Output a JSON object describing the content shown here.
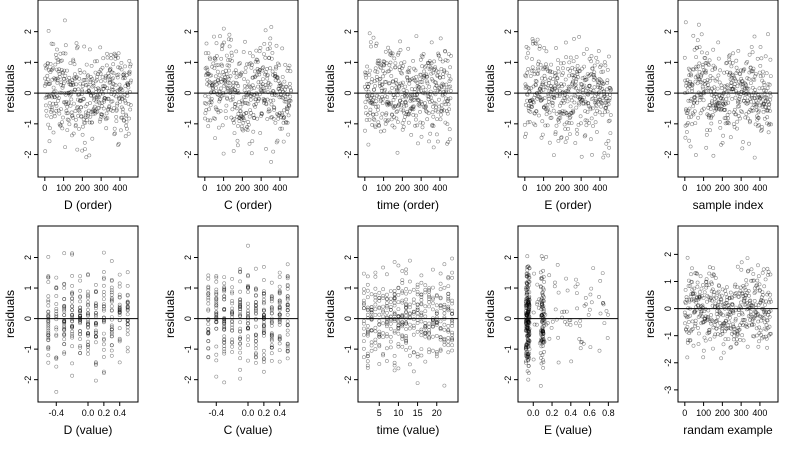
{
  "figure": {
    "layout": "2x5 grid of residual scatter plots",
    "point_style": "open circles, semi-transparent black",
    "reference_line": 0
  },
  "chart_data": [
    {
      "type": "scatter",
      "xlabel": "D (order)",
      "ylabel": "residuals",
      "xlim": [
        -15,
        475
      ],
      "ylim": [
        -2.6,
        2.9
      ],
      "x_ticks": [
        0,
        100,
        200,
        300,
        400
      ],
      "x_tick_labels": [
        "0",
        "100",
        "200",
        "300",
        "400"
      ],
      "y_ticks": [
        -2,
        -1,
        0,
        1,
        2
      ],
      "y_tick_labels": [
        "-2",
        "-1",
        "0",
        "1",
        "2"
      ],
      "x_kind": "order",
      "n_points": 460
    },
    {
      "type": "scatter",
      "xlabel": "C (order)",
      "ylabel": "residuals",
      "xlim": [
        -15,
        475
      ],
      "ylim": [
        -2.6,
        2.9
      ],
      "x_ticks": [
        0,
        100,
        200,
        300,
        400
      ],
      "x_tick_labels": [
        "0",
        "100",
        "200",
        "300",
        "400"
      ],
      "y_ticks": [
        -2,
        -1,
        0,
        1,
        2
      ],
      "y_tick_labels": [
        "-2",
        "-1",
        "0",
        "1",
        "2"
      ],
      "x_kind": "order",
      "n_points": 460
    },
    {
      "type": "scatter",
      "xlabel": "time (order)",
      "ylabel": "residuals",
      "xlim": [
        -15,
        475
      ],
      "ylim": [
        -2.6,
        2.9
      ],
      "x_ticks": [
        0,
        100,
        200,
        300,
        400
      ],
      "x_tick_labels": [
        "0",
        "100",
        "200",
        "300",
        "400"
      ],
      "y_ticks": [
        -2,
        -1,
        0,
        1,
        2
      ],
      "y_tick_labels": [
        "-2",
        "-1",
        "0",
        "1",
        "2"
      ],
      "x_kind": "order",
      "n_points": 460
    },
    {
      "type": "scatter",
      "xlabel": "E (order)",
      "ylabel": "residuals",
      "xlim": [
        -15,
        475
      ],
      "ylim": [
        -2.6,
        2.9
      ],
      "x_ticks": [
        0,
        100,
        200,
        300,
        400
      ],
      "x_tick_labels": [
        "0",
        "100",
        "200",
        "300",
        "400"
      ],
      "y_ticks": [
        -2,
        -1,
        0,
        1,
        2
      ],
      "y_tick_labels": [
        "-2",
        "-1",
        "0",
        "1",
        "2"
      ],
      "x_kind": "order",
      "n_points": 460
    },
    {
      "type": "scatter",
      "xlabel": "sample index",
      "ylabel": "residuals",
      "xlim": [
        -15,
        475
      ],
      "ylim": [
        -2.6,
        2.9
      ],
      "x_ticks": [
        0,
        100,
        200,
        300,
        400
      ],
      "x_tick_labels": [
        "0",
        "100",
        "200",
        "300",
        "400"
      ],
      "y_ticks": [
        -2,
        -1,
        0,
        1,
        2
      ],
      "y_tick_labels": [
        "-2",
        "-1",
        "0",
        "1",
        "2"
      ],
      "x_kind": "order",
      "n_points": 460
    },
    {
      "type": "scatter",
      "xlabel": "D (value)",
      "ylabel": "residuals",
      "xlim": [
        -0.58,
        0.58
      ],
      "ylim": [
        -2.6,
        2.9
      ],
      "x_ticks": [
        -0.4,
        0.0,
        0.2,
        0.4
      ],
      "x_tick_labels": [
        "-0.4",
        "0.0",
        "0.2",
        "0.4"
      ],
      "y_ticks": [
        -2,
        -1,
        0,
        1,
        2
      ],
      "y_tick_labels": [
        "-2",
        "-1",
        "0",
        "1",
        "2"
      ],
      "x_kind": "discrete",
      "x_levels": [
        -0.5,
        -0.4,
        -0.3,
        -0.2,
        -0.1,
        0.0,
        0.1,
        0.2,
        0.3,
        0.4,
        0.5
      ],
      "n_points": 330
    },
    {
      "type": "scatter",
      "xlabel": "C (value)",
      "ylabel": "residuals",
      "xlim": [
        -0.58,
        0.58
      ],
      "ylim": [
        -2.6,
        2.9
      ],
      "x_ticks": [
        -0.4,
        0.0,
        0.2,
        0.4
      ],
      "x_tick_labels": [
        "-0.4",
        "0.0",
        "0.2",
        "0.4"
      ],
      "y_ticks": [
        -2,
        -1,
        0,
        1,
        2
      ],
      "y_tick_labels": [
        "-2",
        "-1",
        "0",
        "1",
        "2"
      ],
      "x_kind": "discrete",
      "x_levels": [
        -0.5,
        -0.4,
        -0.3,
        -0.2,
        -0.1,
        0.0,
        0.1,
        0.2,
        0.3,
        0.4,
        0.5
      ],
      "n_points": 360
    },
    {
      "type": "scatter",
      "xlabel": "time (value)",
      "ylabel": "residuals",
      "xlim": [
        0.5,
        24.5
      ],
      "ylim": [
        -2.6,
        2.9
      ],
      "x_ticks": [
        5,
        10,
        15,
        20
      ],
      "x_tick_labels": [
        "5",
        "10",
        "15",
        "20"
      ],
      "y_ticks": [
        -2,
        -1,
        0,
        1,
        2
      ],
      "y_tick_labels": [
        "-2",
        "-1",
        "0",
        "1",
        "2"
      ],
      "x_kind": "discrete",
      "x_levels": [
        1,
        2,
        3,
        4,
        5,
        6,
        7,
        8,
        9,
        10,
        11,
        12,
        13,
        14,
        15,
        16,
        17,
        18,
        19,
        20,
        21,
        22,
        23,
        24
      ],
      "n_points": 420
    },
    {
      "type": "scatter",
      "xlabel": "E (value)",
      "ylabel": "residuals",
      "xlim": [
        -0.12,
        0.86
      ],
      "ylim": [
        -2.6,
        2.9
      ],
      "x_ticks": [
        0.0,
        0.2,
        0.4,
        0.6,
        0.8
      ],
      "x_tick_labels": [
        "0.0",
        "0.2",
        "0.4",
        "0.6",
        "0.8"
      ],
      "y_ticks": [
        -2,
        -1,
        0,
        1,
        2
      ],
      "y_tick_labels": [
        "-2",
        "-1",
        "0",
        "1",
        "2"
      ],
      "x_kind": "skewed",
      "n_points": 400
    },
    {
      "type": "scatter",
      "xlabel": "randam example",
      "ylabel": "residuals",
      "xlim": [
        -15,
        475
      ],
      "ylim": [
        -3.3,
        2.9
      ],
      "x_ticks": [
        0,
        100,
        200,
        300,
        400
      ],
      "x_tick_labels": [
        "0",
        "100",
        "200",
        "300",
        "400"
      ],
      "y_ticks": [
        -3,
        -2,
        -1,
        0,
        1,
        2
      ],
      "y_tick_labels": [
        "-3",
        "-2",
        "-1",
        "0",
        "1",
        "2"
      ],
      "x_kind": "order",
      "n_points": 460
    }
  ]
}
